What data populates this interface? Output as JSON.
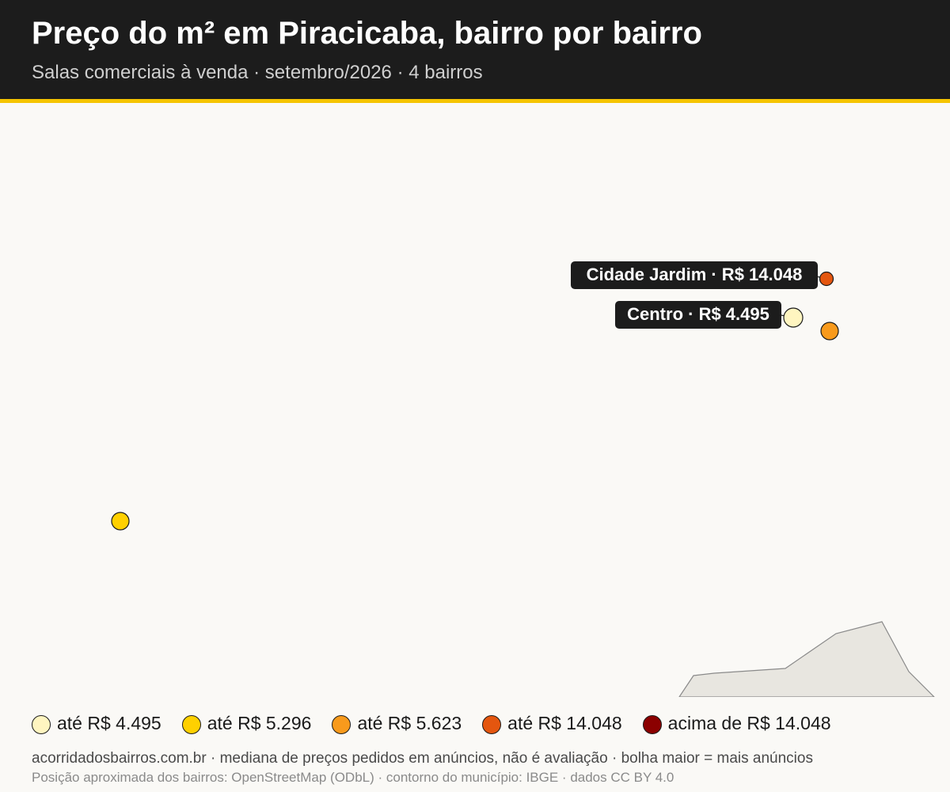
{
  "header": {
    "title": "Preço do m² em Piracicaba, bairro por bairro",
    "subtitle": "Salas comerciais à venda · setembro/2026 · 4 bairros"
  },
  "colors": {
    "header_bg": "#1c1c1c",
    "accent": "#f5c400",
    "background": "#faf9f6",
    "municipality_fill": "#e8e6e0",
    "municipality_stroke": "#8a8a8a"
  },
  "neighborhoods": [
    {
      "name": "Cidade Jardim",
      "price_label": "R$ 14.048",
      "color": "#e4560f",
      "labeled": true
    },
    {
      "name": "Centro",
      "price_label": "R$ 4.495",
      "color": "#fff5c0",
      "labeled": true
    },
    {
      "name": "",
      "price_label": "",
      "color": "#f89a1c",
      "labeled": false
    },
    {
      "name": "",
      "price_label": "",
      "color": "#ffd000",
      "labeled": false
    }
  ],
  "labels": {
    "cidade_jardim": "Cidade Jardim · R$ 14.048",
    "centro": "Centro · R$ 4.495"
  },
  "legend": [
    {
      "label": "até R$ 4.495",
      "color": "#fff5c0"
    },
    {
      "label": "até R$ 5.296",
      "color": "#ffd000"
    },
    {
      "label": "até R$ 5.623",
      "color": "#f89a1c"
    },
    {
      "label": "até R$ 14.048",
      "color": "#e4560f"
    },
    {
      "label": "acima de R$ 14.048",
      "color": "#8b0000"
    }
  ],
  "footer": {
    "line1": "acorridadosbairros.com.br · mediana de preços pedidos em anúncios, não é avaliação · bolha maior = mais anúncios",
    "line2": "Posição aproximada dos bairros: OpenStreetMap (ODbL) · contorno do município: IBGE · dados CC BY 4.0"
  }
}
